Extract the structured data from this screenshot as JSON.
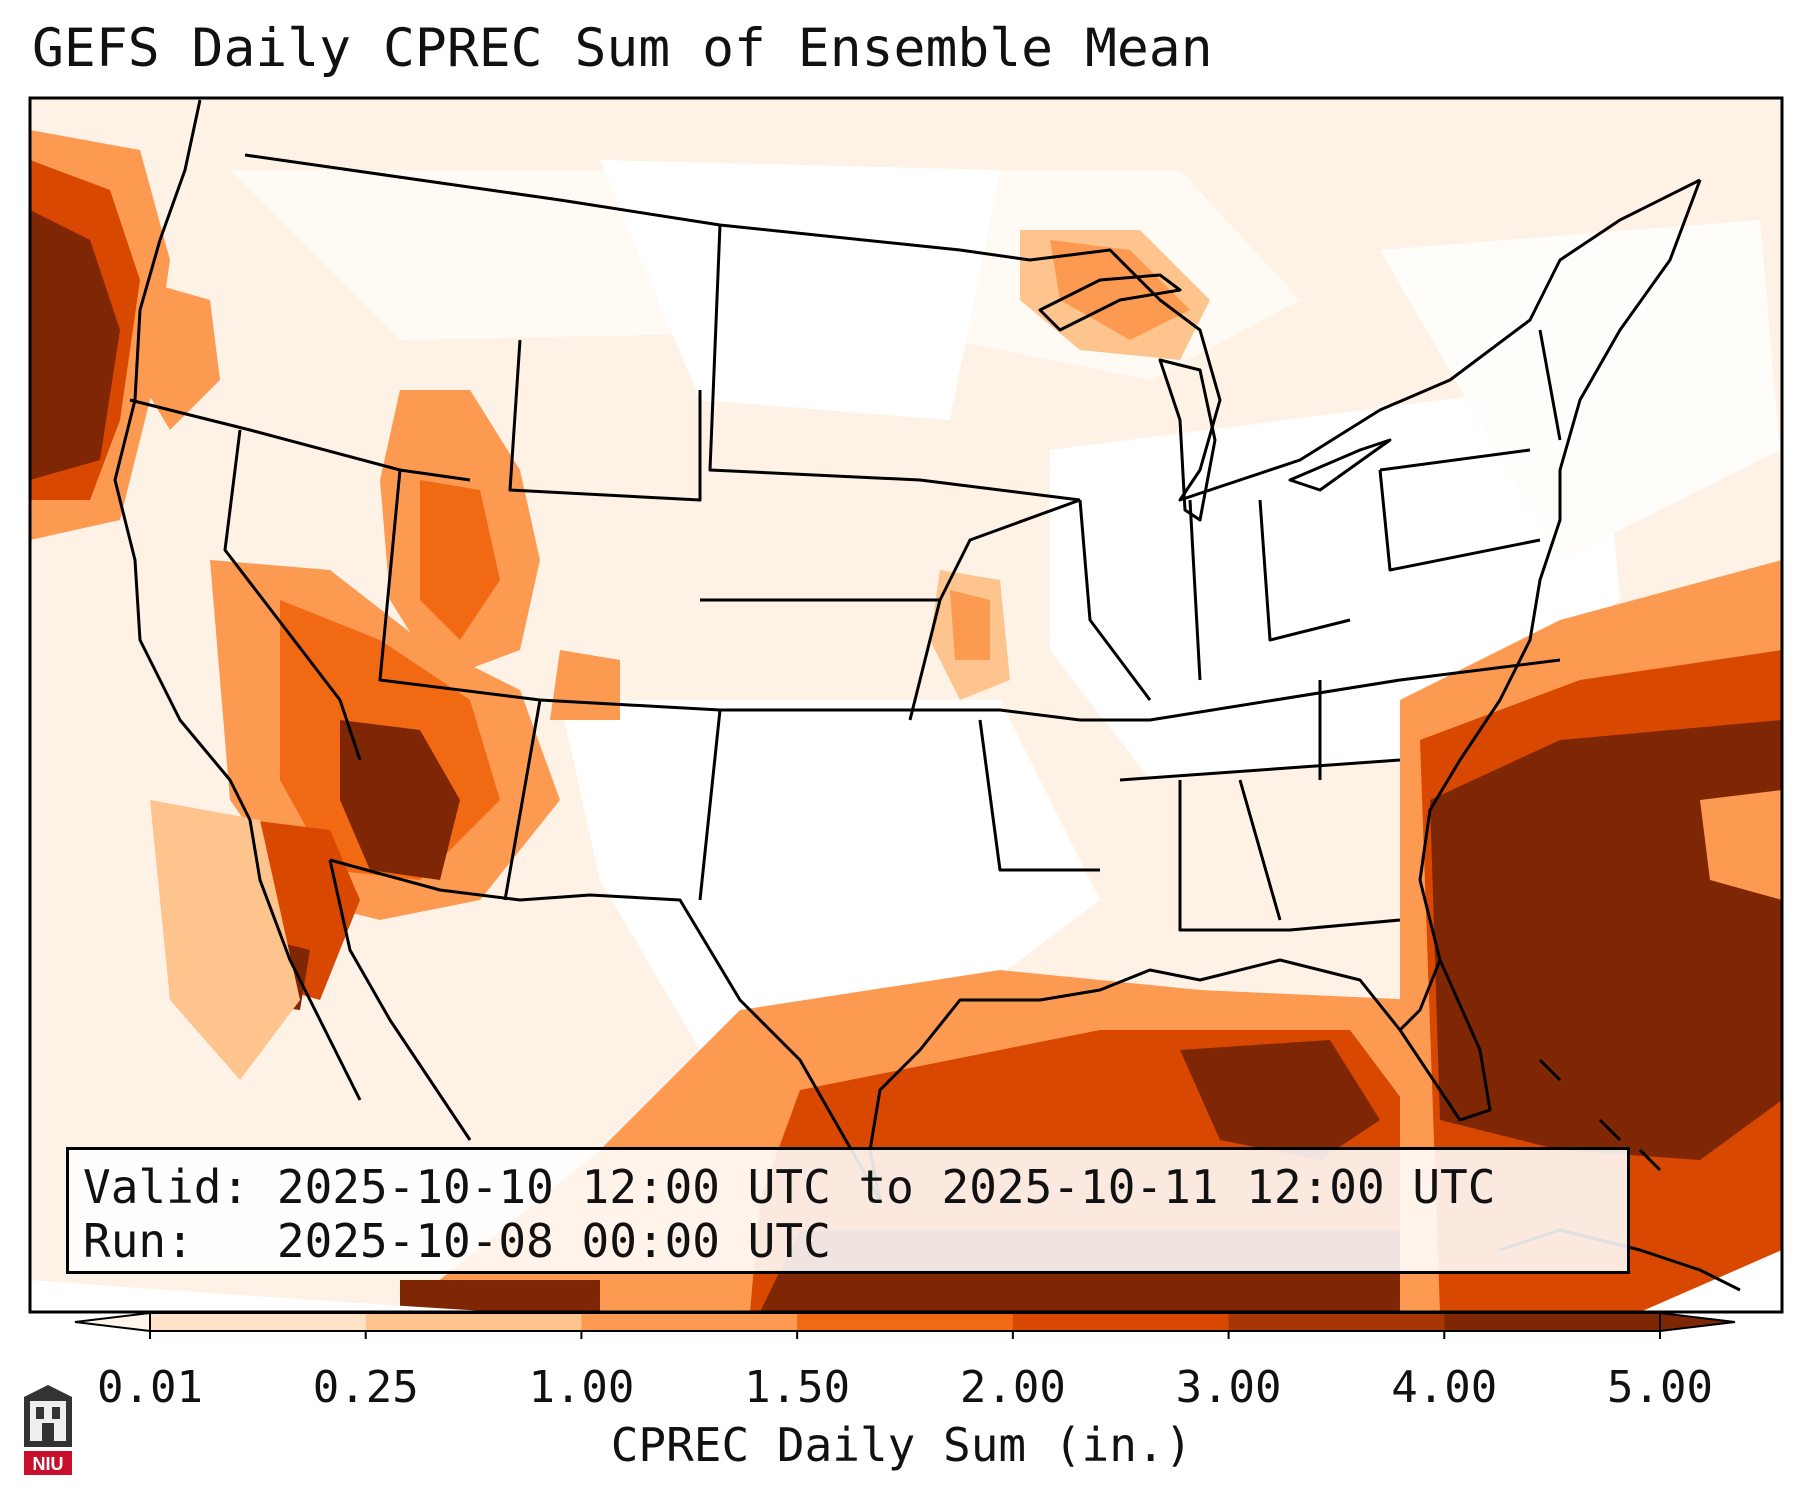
{
  "title": "GEFS Daily CPREC Sum of Ensemble Mean",
  "info": {
    "valid_label": "Valid:",
    "valid_value": "2025-10-10 12:00 UTC to 2025-10-11 12:00 UTC",
    "run_label": "Run:",
    "run_value": "2025-10-08 00:00 UTC"
  },
  "colorbar": {
    "label": "CPREC Daily Sum (in.)",
    "ticks": [
      "0.01",
      "0.25",
      "1.00",
      "1.50",
      "2.00",
      "3.00",
      "4.00",
      "5.00"
    ],
    "colors": [
      "#fff5eb",
      "#fee3c8",
      "#fdc48e",
      "#fd9a52",
      "#f16913",
      "#d94801",
      "#a63603",
      "#7f2704"
    ],
    "extend": "both"
  },
  "logo": {
    "text": "NIU",
    "color": "#c8102e"
  },
  "precip_areas": {
    "pacific_northwest_offshore": 5.0,
    "southeast_atlantic_offshore": 5.0,
    "southern_arizona": 5.0,
    "gulf_of_mexico": 4.0,
    "great_lakes": 1.5
  }
}
